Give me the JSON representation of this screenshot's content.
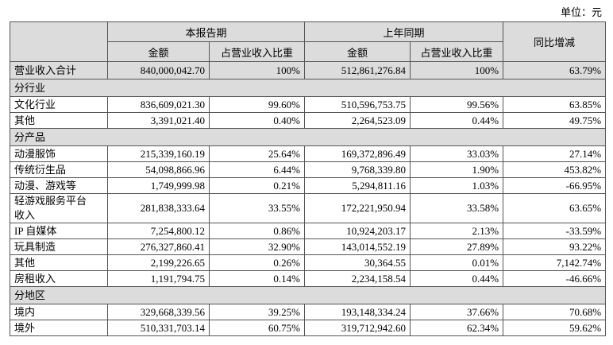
{
  "unit": "单位：元",
  "header": {
    "groups": [
      "本报告期",
      "上年同期",
      "同比增减"
    ],
    "columns": [
      "金额",
      "占营业收入比重",
      "金额",
      "占营业收入比重"
    ]
  },
  "table": {
    "rows": [
      [
        "营业收入合计",
        "840,000,042.70",
        "100%",
        "512,861,276.84",
        "100%",
        "63.79%"
      ],
      [
        "分行业"
      ],
      [
        "文化行业",
        "836,609,021.30",
        "99.60%",
        "510,596,753.75",
        "99.56%",
        "63.85%"
      ],
      [
        "其他",
        "3,391,021.40",
        "0.40%",
        "2,264,523.09",
        "0.44%",
        "49.75%"
      ],
      [
        "分产品"
      ],
      [
        "动漫服饰",
        "215,339,160.19",
        "25.64%",
        "169,372,896.49",
        "33.03%",
        "27.14%"
      ],
      [
        "传统衍生品",
        "54,098,866.96",
        "6.44%",
        "9,768,339.80",
        "1.90%",
        "453.82%"
      ],
      [
        "动漫、游戏等",
        "1,749,999.98",
        "0.21%",
        "5,294,811.16",
        "1.03%",
        "-66.95%"
      ],
      [
        "轻游戏服务平台收入",
        "281,838,333.64",
        "33.55%",
        "172,221,950.94",
        "33.58%",
        "63.65%"
      ],
      [
        "IP 自媒体",
        "7,254,800.12",
        "0.86%",
        "10,924,203.17",
        "2.13%",
        "-33.59%"
      ],
      [
        "玩具制造",
        "276,327,860.41",
        "32.90%",
        "143,014,552.19",
        "27.89%",
        "93.22%"
      ],
      [
        "其他",
        "2,199,226.65",
        "0.26%",
        "30,364.55",
        "0.01%",
        "7,142.74%"
      ],
      [
        "房租收入",
        "1,191,794.75",
        "0.14%",
        "2,234,158.54",
        "0.44%",
        "-46.66%"
      ],
      [
        "分地区"
      ],
      [
        "境内",
        "329,668,339.56",
        "39.25%",
        "193,148,334.24",
        "37.66%",
        "70.68%"
      ],
      [
        "境外",
        "510,331,703.14",
        "60.75%",
        "319,712,942.60",
        "62.34%",
        "59.62%"
      ]
    ]
  }
}
